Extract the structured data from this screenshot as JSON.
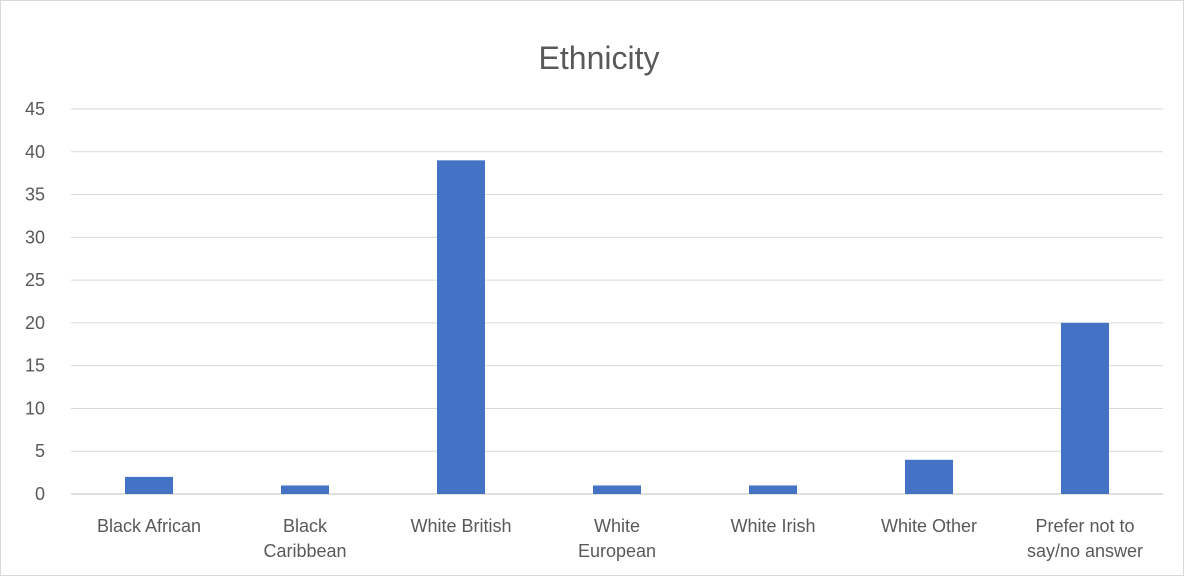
{
  "chart_data": {
    "type": "bar",
    "title": "Ethnicity",
    "categories": [
      [
        "Black African"
      ],
      [
        "Black",
        "Caribbean"
      ],
      [
        "White British"
      ],
      [
        "White",
        "European"
      ],
      [
        "White Irish"
      ],
      [
        "White Other"
      ],
      [
        "Prefer not to",
        "say/no answer"
      ]
    ],
    "values": [
      2,
      1,
      39,
      1,
      1,
      4,
      20
    ],
    "ylim": [
      0,
      45
    ],
    "yticks": [
      0,
      5,
      10,
      15,
      20,
      25,
      30,
      35,
      40,
      45
    ],
    "grid": true,
    "legend": "none",
    "bar_color": "#4472c4"
  }
}
